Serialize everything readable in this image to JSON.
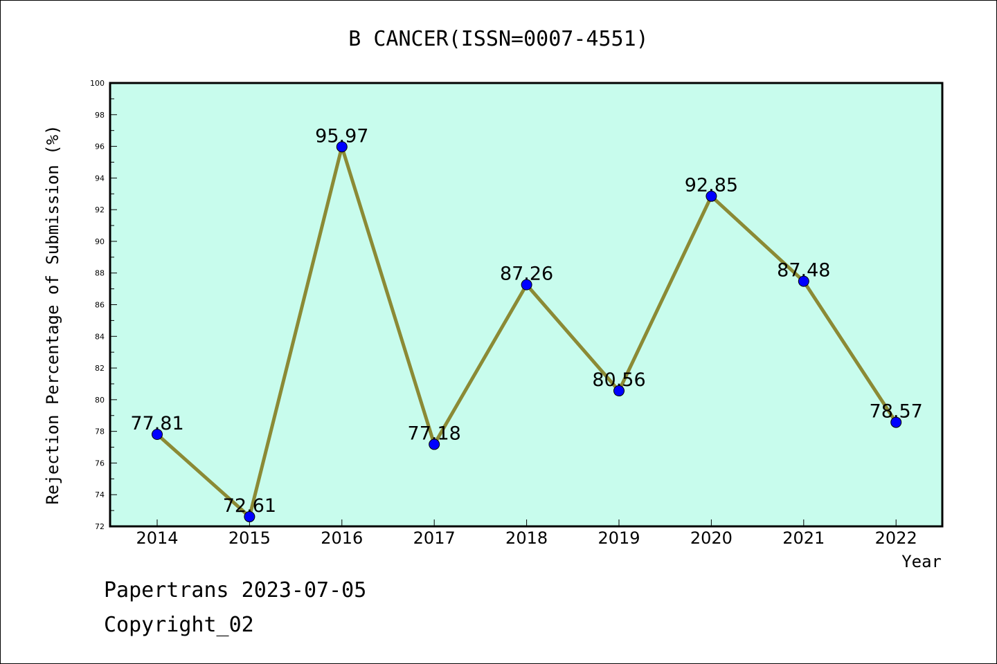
{
  "chart_data": {
    "type": "line",
    "title": "B CANCER(ISSN=0007-4551)",
    "xlabel": "Year",
    "ylabel": "Rejection Percentage of Submission (%)",
    "categories": [
      "2014",
      "2015",
      "2016",
      "2017",
      "2018",
      "2019",
      "2020",
      "2021",
      "2022"
    ],
    "values": [
      77.81,
      72.61,
      95.97,
      77.18,
      87.26,
      80.56,
      92.85,
      87.48,
      78.57
    ],
    "data_labels": [
      "77.81",
      "72.61",
      "95.97",
      "77.18",
      "87.26",
      "80.56",
      "92.85",
      "87.48",
      "78.57"
    ],
    "ylim": [
      72,
      100
    ],
    "y_ticks": [
      "72",
      "74",
      "76",
      "78",
      "80",
      "82",
      "84",
      "86",
      "88",
      "90",
      "92",
      "94",
      "96",
      "98",
      "100"
    ],
    "grid": false,
    "legend": "none",
    "colors": {
      "plot_background": "#c8fced",
      "line": "#8b8a35",
      "marker": "#0000ff"
    }
  },
  "footer": {
    "line1": "Papertrans 2023-07-05",
    "line2": "Copyright_02"
  }
}
